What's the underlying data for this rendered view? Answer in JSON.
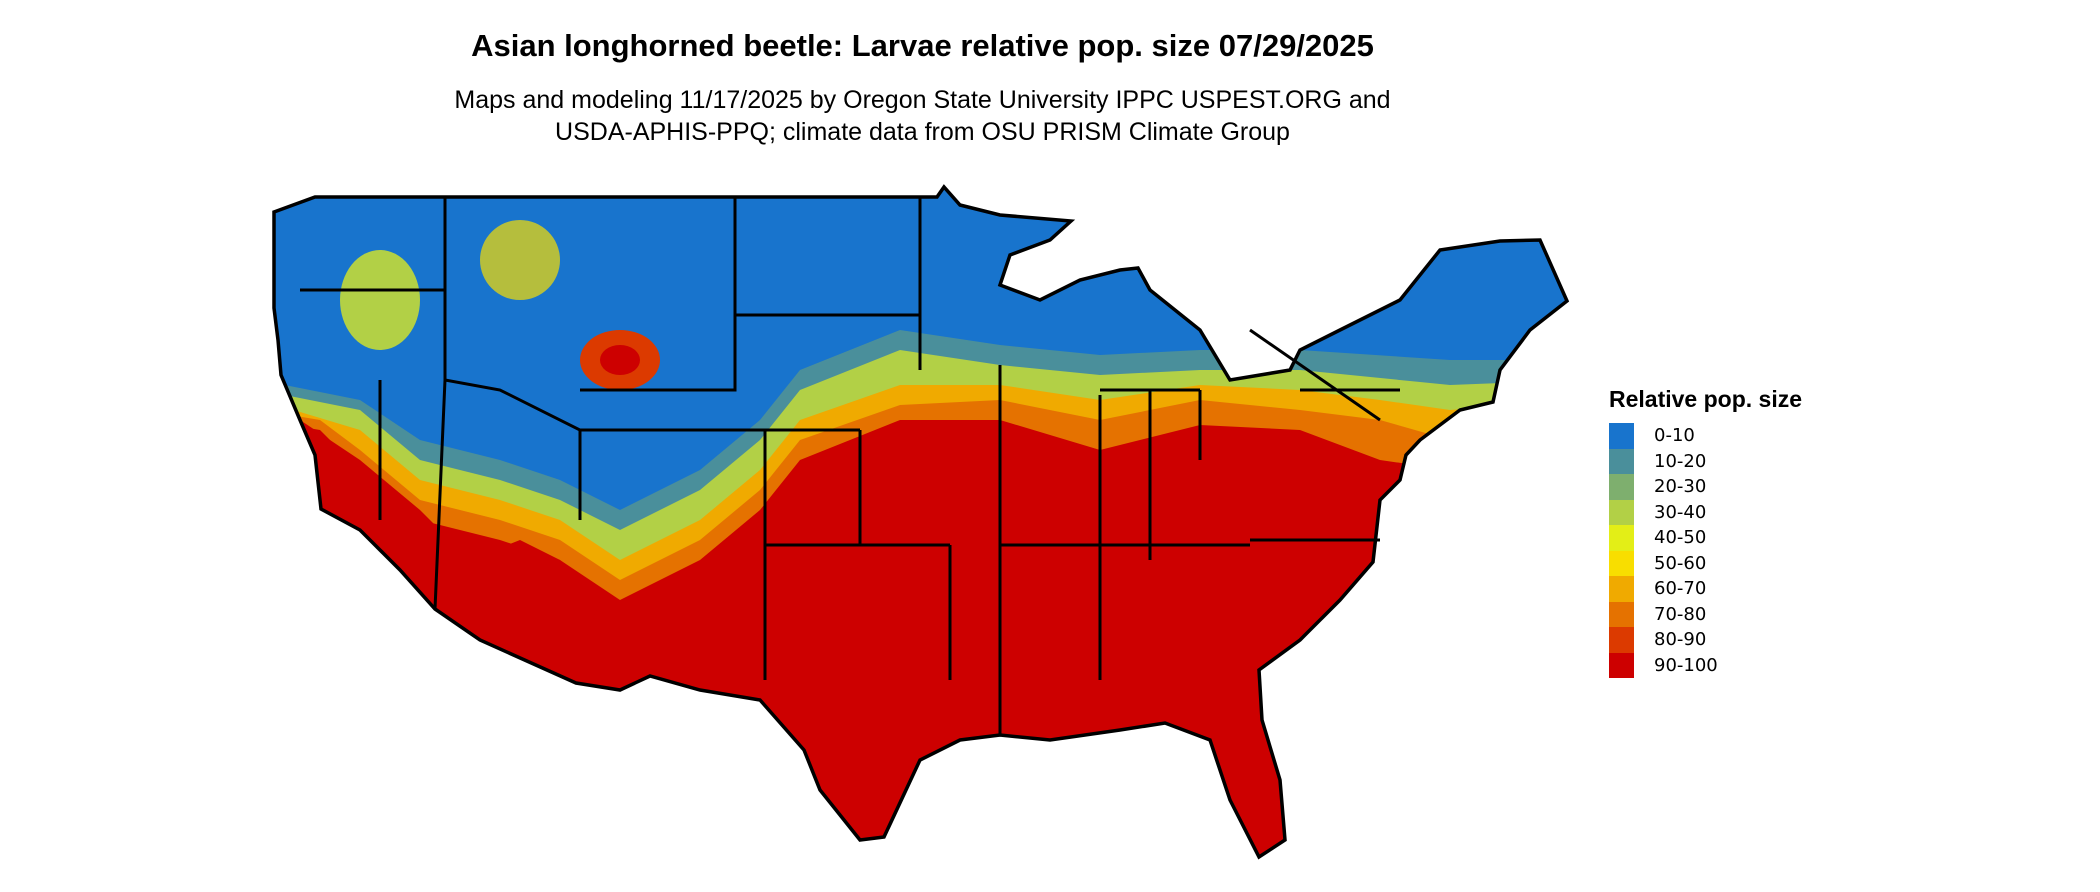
{
  "title": "Asian longhorned beetle: Larvae relative pop. size 07/29/2025",
  "subtitle_line1": "Maps and modeling 11/17/2025 by Oregon State University IPPC USPEST.ORG and",
  "subtitle_line2": "USDA-APHIS-PPQ; climate data from OSU PRISM Climate Group",
  "legend": {
    "title": "Relative pop. size",
    "items": [
      {
        "label": "0-10",
        "color": "#1874CD"
      },
      {
        "label": "10-20",
        "color": "#4A8F9B"
      },
      {
        "label": "20-30",
        "color": "#7EAF6E"
      },
      {
        "label": "30-40",
        "color": "#B2D046"
      },
      {
        "label": "40-50",
        "color": "#E3EE17"
      },
      {
        "label": "50-60",
        "color": "#F8DE00"
      },
      {
        "label": "60-70",
        "color": "#F0AA00"
      },
      {
        "label": "70-80",
        "color": "#E57200"
      },
      {
        "label": "80-90",
        "color": "#DC3A00"
      },
      {
        "label": "90-100",
        "color": "#CD0000"
      }
    ]
  }
}
